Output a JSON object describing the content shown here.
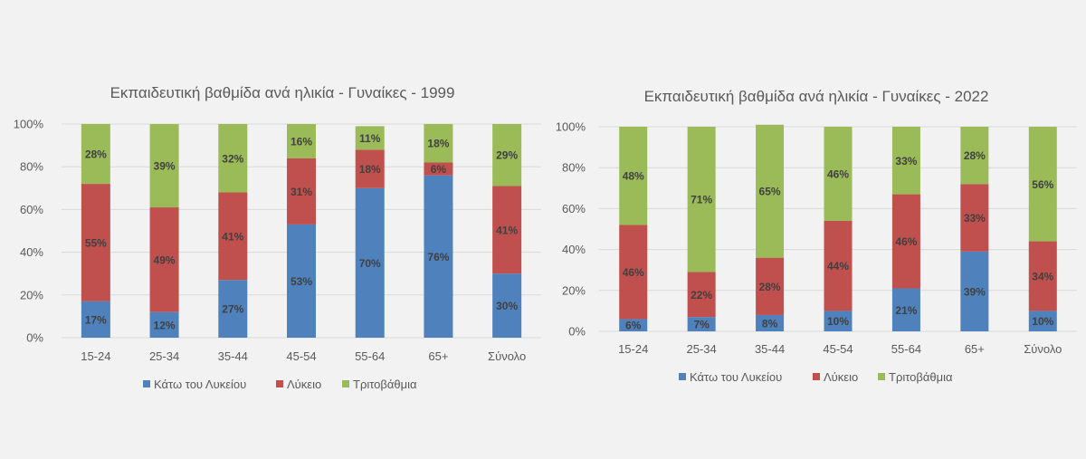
{
  "colors": {
    "below_lyceum": "#4f81bd",
    "lyceum": "#c0504d",
    "tertiary": "#9bbb59",
    "gridline": "#d9d9d9",
    "text": "#595959",
    "label": "#404040"
  },
  "chart_data": [
    {
      "type": "bar",
      "stacked": true,
      "title": "Εκπαιδευτική βαθμίδα ανά ηλικία - Γυναίκες - 1999",
      "categories": [
        "15-24",
        "25-34",
        "35-44",
        "45-54",
        "55-64",
        "65+",
        "Σύνολο"
      ],
      "yticks": [
        "0%",
        "20%",
        "40%",
        "60%",
        "80%",
        "100%"
      ],
      "ylim": [
        0,
        100
      ],
      "grid": true,
      "legend": "bottom",
      "series": [
        {
          "name": "Κάτω του Λυκείου",
          "color_key": "below_lyceum",
          "values": [
            17,
            12,
            27,
            53,
            70,
            76,
            30
          ],
          "labels": [
            "17%",
            "12%",
            "27%",
            "53%",
            "70%",
            "76%",
            "30%"
          ]
        },
        {
          "name": "Λύκειο",
          "color_key": "lyceum",
          "values": [
            55,
            49,
            41,
            31,
            18,
            6,
            41
          ],
          "labels": [
            "55%",
            "49%",
            "41%",
            "31%",
            "18%",
            "6%",
            "41%"
          ]
        },
        {
          "name": "Τριτοβάθμια",
          "color_key": "tertiary",
          "values": [
            28,
            39,
            32,
            16,
            11,
            18,
            29
          ],
          "labels": [
            "28%",
            "39%",
            "32%",
            "16%",
            "11%",
            "18%",
            "29%"
          ]
        }
      ]
    },
    {
      "type": "bar",
      "stacked": true,
      "title": "Εκπαιδευτική βαθμίδα ανά ηλικία - Γυναίκες - 2022",
      "categories": [
        "15-24",
        "25-34",
        "35-44",
        "45-54",
        "55-64",
        "65+",
        "Σύνολο"
      ],
      "yticks": [
        "0%",
        "20%",
        "40%",
        "60%",
        "80%",
        "100%"
      ],
      "ylim": [
        0,
        100
      ],
      "grid": true,
      "legend": "bottom",
      "series": [
        {
          "name": "Κάτω του Λυκείου",
          "color_key": "below_lyceum",
          "values": [
            6,
            7,
            8,
            10,
            21,
            39,
            10
          ],
          "labels": [
            "6%",
            "7%",
            "8%",
            "10%",
            "21%",
            "39%",
            "10%"
          ]
        },
        {
          "name": "Λύκειο",
          "color_key": "lyceum",
          "values": [
            46,
            22,
            28,
            44,
            46,
            33,
            34
          ],
          "labels": [
            "46%",
            "22%",
            "28%",
            "44%",
            "46%",
            "33%",
            "34%"
          ]
        },
        {
          "name": "Τριτοβάθμια",
          "color_key": "tertiary",
          "values": [
            48,
            71,
            65,
            46,
            33,
            28,
            56
          ],
          "labels": [
            "48%",
            "71%",
            "65%",
            "46%",
            "33%",
            "28%",
            "56%"
          ]
        }
      ]
    }
  ]
}
